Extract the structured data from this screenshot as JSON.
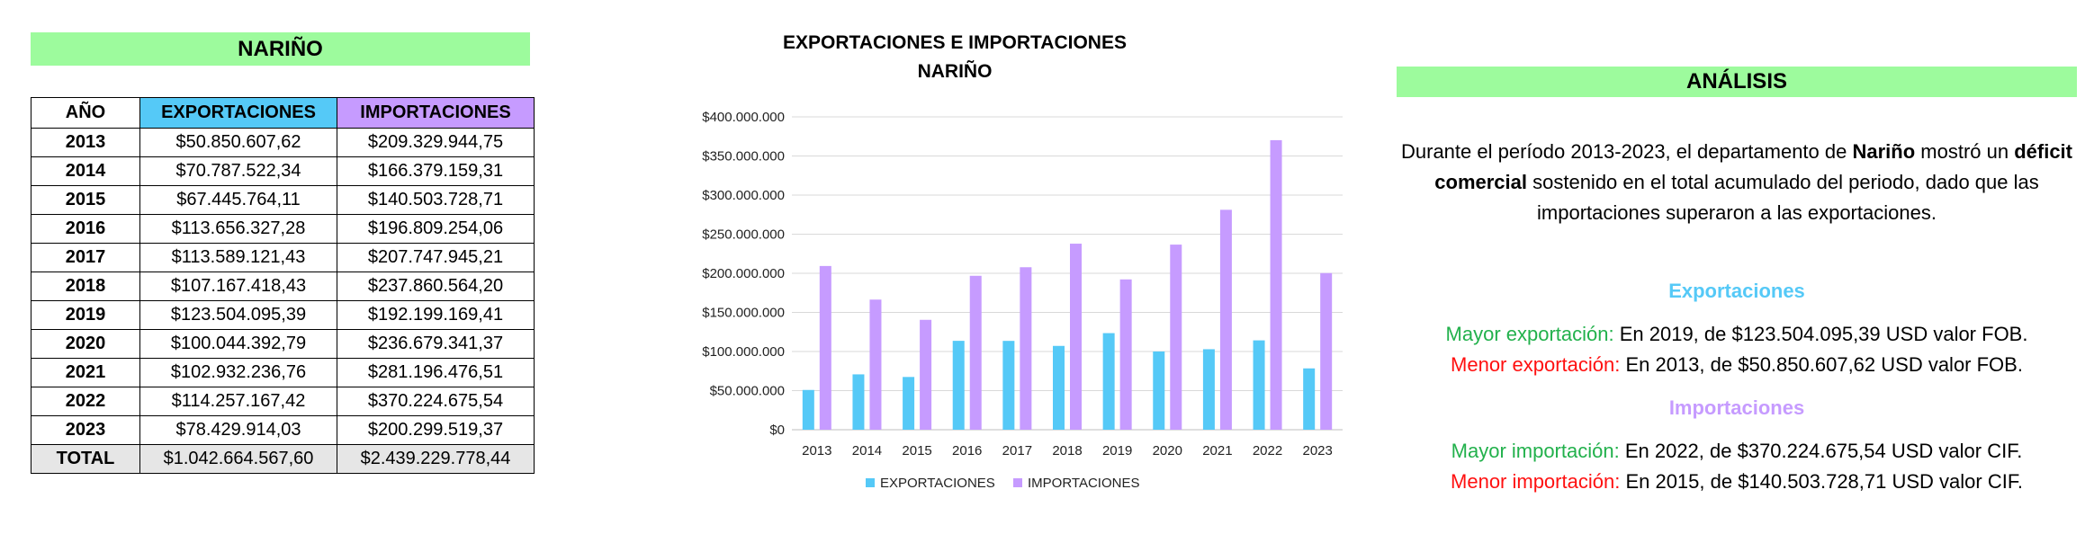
{
  "table": {
    "title": "NARIÑO",
    "headers": [
      "AÑO",
      "EXPORTACIONES",
      "IMPORTACIONES"
    ],
    "rows": [
      {
        "year": "2013",
        "exp": "$50.850.607,62",
        "imp": "$209.329.944,75"
      },
      {
        "year": "2014",
        "exp": "$70.787.522,34",
        "imp": "$166.379.159,31"
      },
      {
        "year": "2015",
        "exp": "$67.445.764,11",
        "imp": "$140.503.728,71"
      },
      {
        "year": "2016",
        "exp": "$113.656.327,28",
        "imp": "$196.809.254,06"
      },
      {
        "year": "2017",
        "exp": "$113.589.121,43",
        "imp": "$207.747.945,21"
      },
      {
        "year": "2018",
        "exp": "$107.167.418,43",
        "imp": "$237.860.564,20"
      },
      {
        "year": "2019",
        "exp": "$123.504.095,39",
        "imp": "$192.199.169,41"
      },
      {
        "year": "2020",
        "exp": "$100.044.392,79",
        "imp": "$236.679.341,37"
      },
      {
        "year": "2021",
        "exp": "$102.932.236,76",
        "imp": "$281.196.476,51"
      },
      {
        "year": "2022",
        "exp": "$114.257.167,42",
        "imp": "$370.224.675,54"
      },
      {
        "year": "2023",
        "exp": "$78.429.914,03",
        "imp": "$200.299.519,37"
      }
    ],
    "total": {
      "label": "TOTAL",
      "exp": "$1.042.664.567,60",
      "imp": "$2.439.229.778,44"
    }
  },
  "chart_data": {
    "type": "bar",
    "title": "EXPORTACIONES E IMPORTACIONES",
    "subtitle": "NARIÑO",
    "categories": [
      "2013",
      "2014",
      "2015",
      "2016",
      "2017",
      "2018",
      "2019",
      "2020",
      "2021",
      "2022",
      "2023"
    ],
    "series": [
      {
        "name": "EXPORTACIONES",
        "color": "#55c9f7",
        "values": [
          50850607.62,
          70787522.34,
          67445764.11,
          113656327.28,
          113589121.43,
          107167418.43,
          123504095.39,
          100044392.79,
          102932236.76,
          114257167.42,
          78429914.03
        ]
      },
      {
        "name": "IMPORTACIONES",
        "color": "#c69bff",
        "values": [
          209329944.75,
          166379159.31,
          140503728.71,
          196809254.06,
          207747945.21,
          237860564.2,
          192199169.41,
          236679341.37,
          281196476.51,
          370224675.54,
          200299519.37
        ]
      }
    ],
    "ylim": [
      0,
      400000000
    ],
    "yticks": [
      "$0",
      "$50.000.000",
      "$100.000.000",
      "$150.000.000",
      "$200.000.000",
      "$250.000.000",
      "$300.000.000",
      "$350.000.000",
      "$400.000.000"
    ],
    "grid": true,
    "legend": "bottom"
  },
  "analysis": {
    "title": "ANÁLISIS",
    "p_pre": "Durante el período 2013-2023, el departamento de ",
    "p_bold1": "Nariño",
    "p_mid": " mostró un ",
    "p_bold2": "déficit comercial",
    "p_post": " sostenido en el total acumulado del periodo, dado que las importaciones superaron a las exportaciones.",
    "exp_heading": "Exportaciones",
    "exp_max_label": "Mayor exportación:",
    "exp_max_text": " En 2019, de $123.504.095,39 USD valor FOB.",
    "exp_min_label": "Menor exportación:",
    "exp_min_text": " En 2013, de $50.850.607,62 USD valor FOB.",
    "imp_heading": "Importaciones",
    "imp_max_label": "Mayor importación:",
    "imp_max_text": " En 2022, de $370.224.675,54 USD valor CIF.",
    "imp_min_label": "Menor importación:",
    "imp_min_text": " En 2015, de $140.503.728,71 USD valor CIF."
  }
}
